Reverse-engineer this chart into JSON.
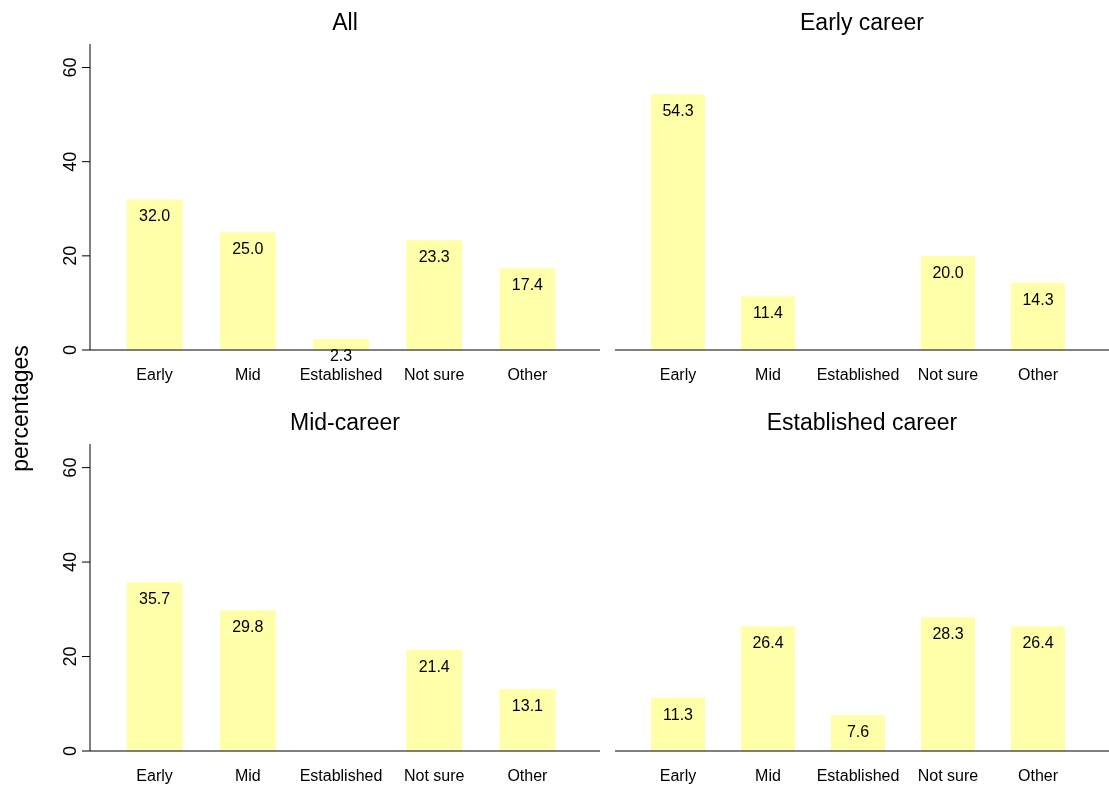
{
  "chart_data": [
    {
      "type": "bar",
      "title": "All",
      "ylabel": "percentages",
      "categories": [
        "Early",
        "Mid",
        "Established",
        "Not sure",
        "Other"
      ],
      "values": [
        32.0,
        25.0,
        2.3,
        23.3,
        17.4
      ],
      "value_labels": [
        "32.0",
        "25.0",
        "2.3",
        "23.3",
        "17.4"
      ],
      "color": "#ffffaa",
      "ylim": [
        0,
        65
      ],
      "yticks": [
        0,
        20,
        40,
        60
      ],
      "grid": false
    },
    {
      "type": "bar",
      "title": "Early career",
      "categories": [
        "Early",
        "Mid",
        "Established",
        "Not sure",
        "Other"
      ],
      "values": [
        54.3,
        11.4,
        null,
        20.0,
        14.3
      ],
      "value_labels": [
        "54.3",
        "11.4",
        null,
        "20.0",
        "14.3"
      ],
      "color": "#ffffaa",
      "grid": false,
      "tick_labels": "x"
    },
    {
      "type": "bar",
      "title": "Mid-career",
      "categories": [
        "Early",
        "Mid",
        "Established",
        "Not sure",
        "Other"
      ],
      "values": [
        35.7,
        29.8,
        null,
        21.4,
        13.1
      ],
      "value_labels": [
        "35.7",
        "29.8",
        null,
        "21.4",
        "13.1"
      ],
      "color": "#ffffaa",
      "ylim": [
        0,
        65
      ],
      "yticks": [
        0,
        20,
        40,
        60
      ],
      "grid": false
    },
    {
      "type": "bar",
      "title": "Established career",
      "categories": [
        "Early",
        "Mid",
        "Established",
        "Not sure",
        "Other"
      ],
      "values": [
        11.3,
        26.4,
        7.6,
        28.3,
        26.4
      ],
      "value_labels": [
        "11.3",
        "26.4",
        "7.6",
        "28.3",
        "26.4"
      ],
      "color": "#ffffaa",
      "grid": false,
      "tick_labels": "x"
    }
  ]
}
